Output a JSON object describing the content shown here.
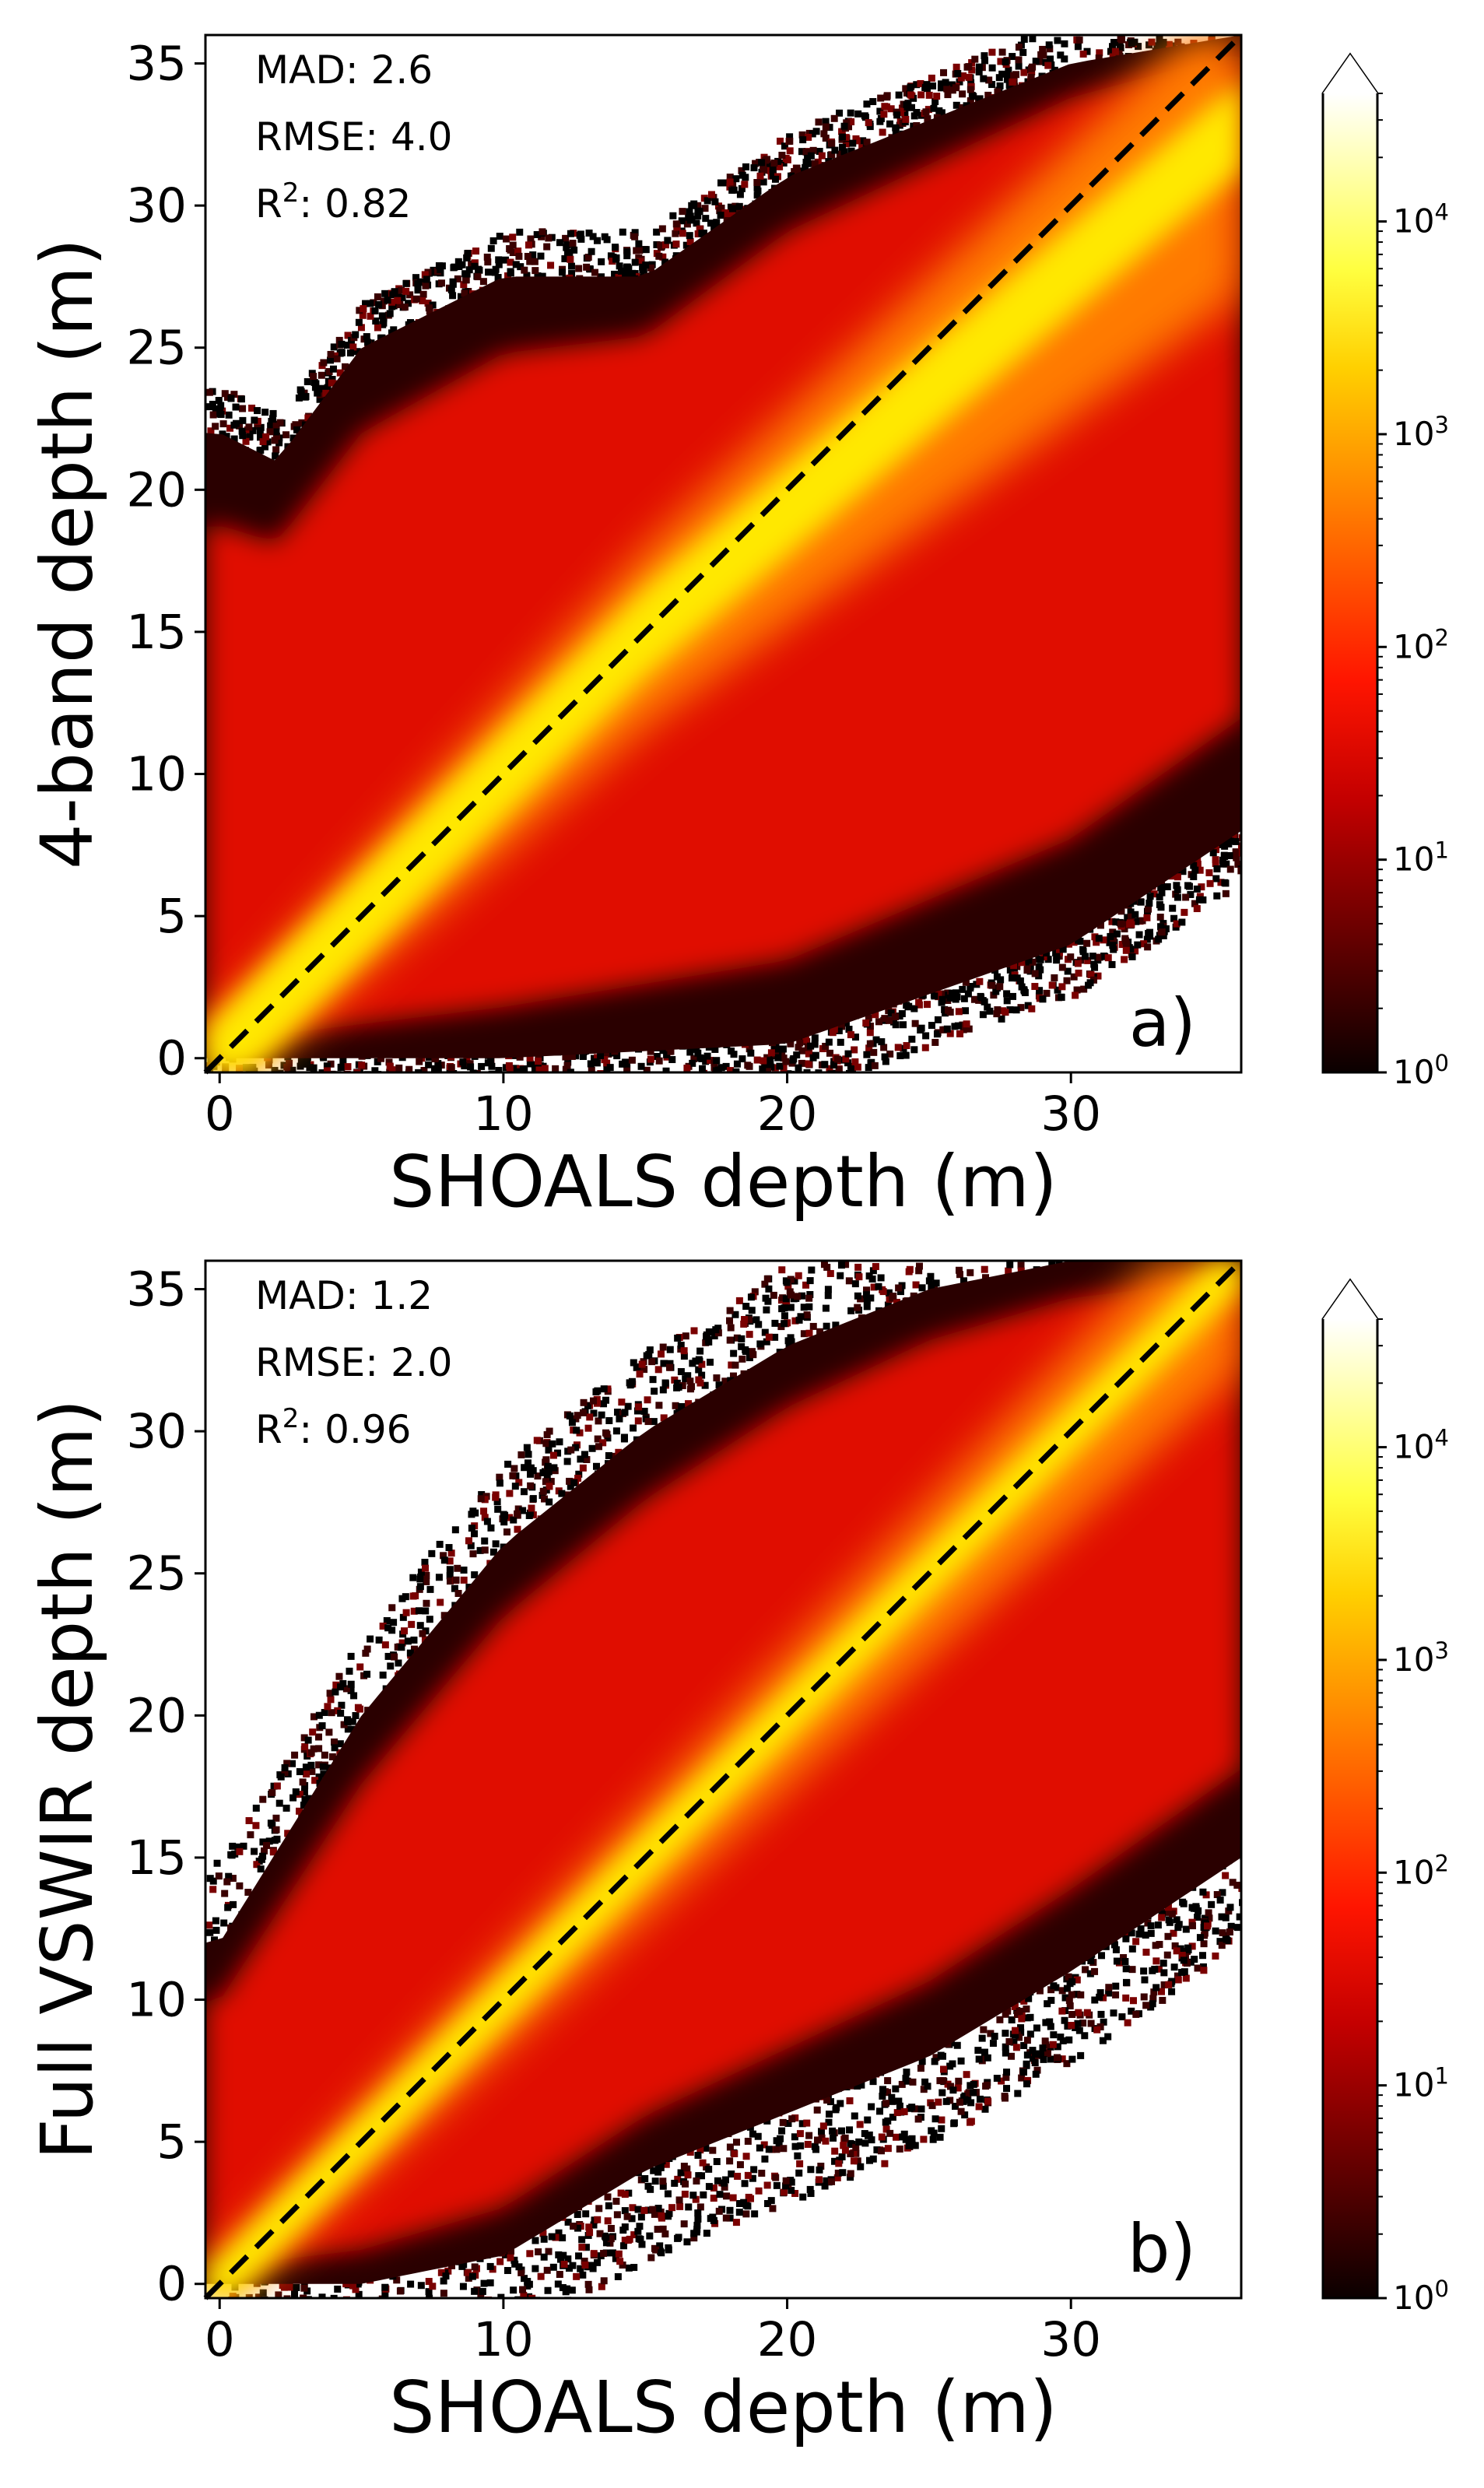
{
  "chart_data": [
    {
      "type": "heatmap",
      "panel_label": "a)",
      "xlabel": "SHOALS depth (m)",
      "ylabel": "4-band depth (m)",
      "xlim": [
        -0.5,
        36
      ],
      "ylim": [
        -0.5,
        36
      ],
      "x_ticks": [
        "0",
        "10",
        "20",
        "30"
      ],
      "y_ticks": [
        "0",
        "5",
        "10",
        "15",
        "20",
        "25",
        "30",
        "35"
      ],
      "stats": {
        "mad_label": "MAD:",
        "mad": "2.6",
        "rmse_label": "RMSE:",
        "rmse": "4.0",
        "r2_base": "R",
        "r2_sup": "2",
        "r2_sep": ":",
        "r2": "0.82"
      },
      "one_to_one_line": true,
      "colorbar": {
        "scale": "log",
        "range": [
          1,
          40000
        ],
        "tick_base": "10",
        "tick_exponents": [
          "0",
          "1",
          "2",
          "3",
          "4"
        ],
        "extend": "max"
      },
      "density_description": {
        "core_line": "y≈x for 0–15 m, flattening toward 28–34 m for x>15",
        "upper_envelope": [
          [
            0,
            22
          ],
          [
            2,
            21
          ],
          [
            5,
            25
          ],
          [
            10,
            27.5
          ],
          [
            15,
            27.5
          ],
          [
            20,
            31
          ],
          [
            25,
            33
          ],
          [
            30,
            35
          ],
          [
            36,
            36
          ]
        ],
        "lower_envelope": [
          [
            0,
            0
          ],
          [
            10,
            0
          ],
          [
            20,
            0.5
          ],
          [
            30,
            4
          ],
          [
            36,
            8
          ]
        ]
      }
    },
    {
      "type": "heatmap",
      "panel_label": "b)",
      "xlabel": "SHOALS depth (m)",
      "ylabel": "Full VSWIR depth (m)",
      "xlim": [
        -0.5,
        36
      ],
      "ylim": [
        -0.5,
        36
      ],
      "x_ticks": [
        "0",
        "10",
        "20",
        "30"
      ],
      "y_ticks": [
        "0",
        "5",
        "10",
        "15",
        "20",
        "25",
        "30",
        "35"
      ],
      "stats": {
        "mad_label": "MAD:",
        "mad": "1.2",
        "rmse_label": "RMSE:",
        "rmse": "2.0",
        "r2_base": "R",
        "r2_sup": "2",
        "r2_sep": ":",
        "r2": "0.96"
      },
      "one_to_one_line": true,
      "colorbar": {
        "scale": "log",
        "range": [
          1,
          40000
        ],
        "tick_base": "10",
        "tick_exponents": [
          "0",
          "1",
          "2",
          "3",
          "4"
        ],
        "extend": "max"
      },
      "density_description": {
        "core_line": "y≈x, tightly concentrated",
        "upper_envelope": [
          [
            0,
            12
          ],
          [
            5,
            20
          ],
          [
            10,
            26
          ],
          [
            15,
            30
          ],
          [
            20,
            33
          ],
          [
            25,
            35
          ],
          [
            30,
            36
          ]
        ],
        "lower_envelope": [
          [
            0,
            0
          ],
          [
            5,
            0
          ],
          [
            10,
            1
          ],
          [
            15,
            4
          ],
          [
            20,
            6
          ],
          [
            25,
            8
          ],
          [
            30,
            11
          ],
          [
            36,
            15
          ]
        ]
      }
    }
  ]
}
